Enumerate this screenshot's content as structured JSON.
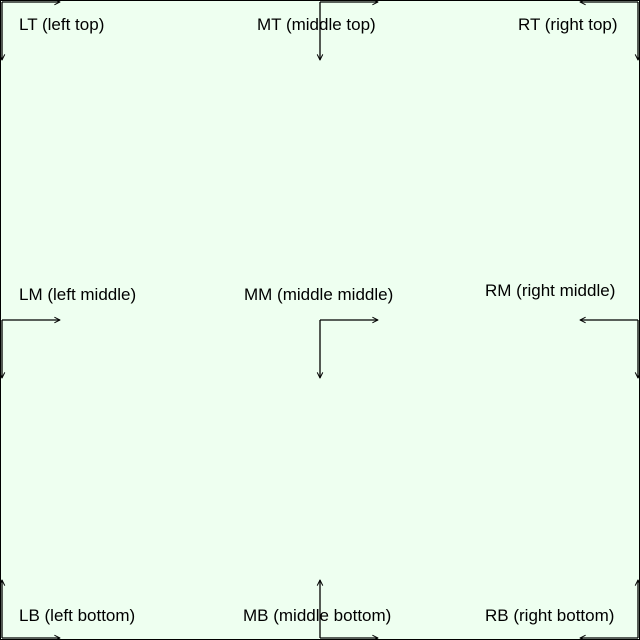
{
  "background_color": "#eefff0",
  "stroke_color": "#000000",
  "labels": {
    "lt": "LT (left top)",
    "mt": "MT (middle top)",
    "rt": "RT (right top)",
    "lm": "LM (left middle)",
    "mm": "MM (middle middle)",
    "rm": "RM (right middle)",
    "lb": "LB (left bottom)",
    "mb": "MB (middle bottom)",
    "rb": "RB (right bottom)"
  }
}
